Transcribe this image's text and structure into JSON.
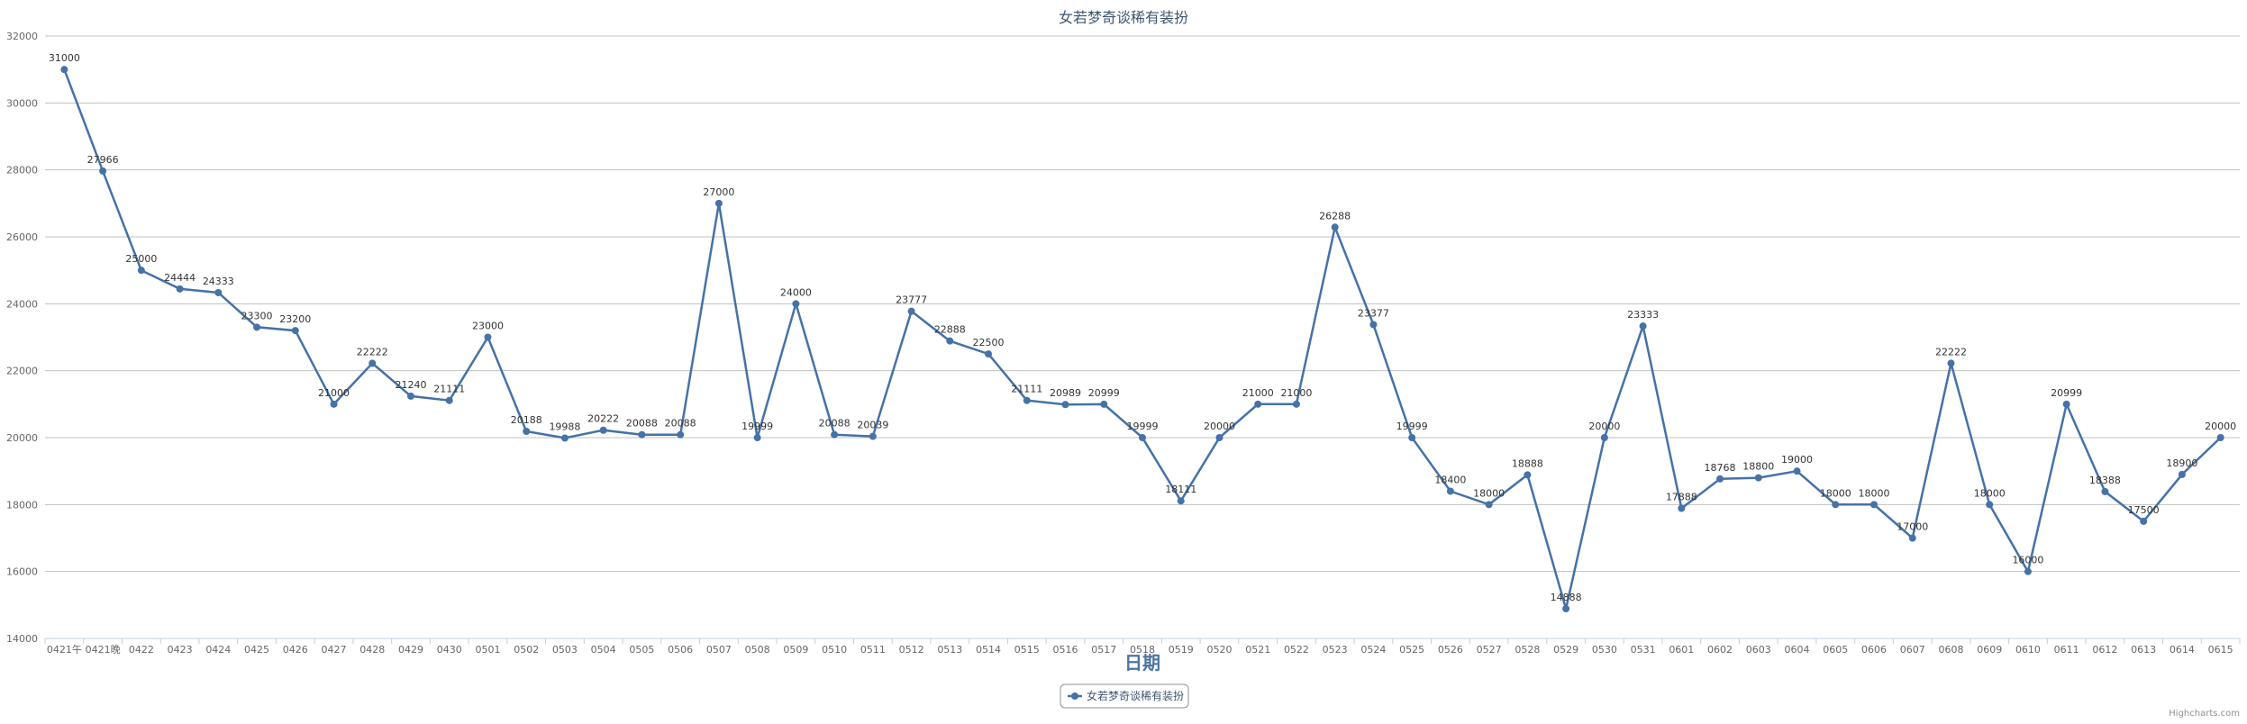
{
  "chart_data": {
    "type": "line",
    "title": "女若梦奇谈稀有装扮",
    "xlabel": "日期",
    "ylabel": "",
    "ylim": [
      14000,
      32000
    ],
    "y_ticks": [
      "14000",
      "16000",
      "18000",
      "20000",
      "22000",
      "24000",
      "26000",
      "28000",
      "30000",
      "32000"
    ],
    "grid": true,
    "legend_position": "bottom-center",
    "categories": [
      "0421午",
      "0421晚",
      "0422",
      "0423",
      "0424",
      "0425",
      "0426",
      "0427",
      "0428",
      "0429",
      "0430",
      "0501",
      "0502",
      "0503",
      "0504",
      "0505",
      "0506",
      "0507",
      "0508",
      "0509",
      "0510",
      "0511",
      "0512",
      "0513",
      "0514",
      "0515",
      "0516",
      "0517",
      "0518",
      "0519",
      "0520",
      "0521",
      "0522",
      "0523",
      "0524",
      "0525",
      "0526",
      "0527",
      "0528",
      "0529",
      "0530",
      "0531",
      "0601",
      "0602",
      "0603",
      "0604",
      "0605",
      "0606",
      "0607",
      "0608",
      "0609",
      "0610",
      "0611",
      "0612",
      "0613",
      "0614",
      "0615"
    ],
    "series": [
      {
        "name": "女若梦奇谈稀有装扮",
        "color": "#4572a7",
        "values": [
          31000,
          27966,
          25000,
          24444,
          24333,
          23300,
          23200,
          21000,
          22222,
          21240,
          21111,
          23000,
          20188,
          19988,
          20222,
          20088,
          20088,
          27000,
          19999,
          24000,
          20088,
          20039,
          23777,
          22888,
          22500,
          21111,
          20989,
          20999,
          19999,
          18111,
          20000,
          21000,
          21000,
          26288,
          23377,
          19999,
          18400,
          18000,
          18888,
          14888,
          20000,
          23333,
          17888,
          18768,
          18800,
          19000,
          18000,
          18000,
          17000,
          22222,
          18000,
          16000,
          20999,
          18388,
          17500,
          18900,
          20000
        ]
      }
    ]
  },
  "credits": "Highcharts.com",
  "colors": {
    "grid": "#c0c0c0",
    "axis": "#c0d0e0",
    "text": "#4d759e",
    "title": "#3e576f"
  }
}
